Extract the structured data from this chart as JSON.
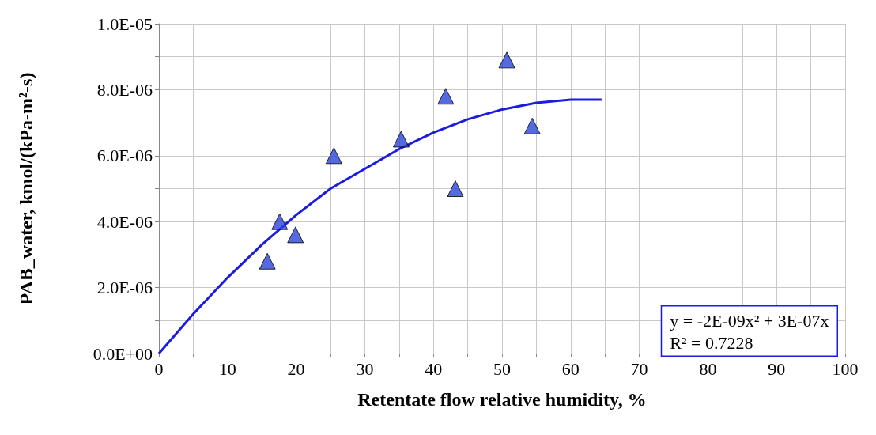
{
  "chart_data": {
    "type": "scatter",
    "xlabel": "Retentate flow relative humidity, %",
    "ylabel": "PAB_water, kmol/(kPa-m²-s)",
    "xlim": [
      0,
      100
    ],
    "xticks": [
      0,
      {
        "value": 5,
        "label": null
      },
      10,
      {
        "value": 15,
        "label": null
      },
      20,
      {
        "value": 25,
        "label": null
      },
      30,
      {
        "value": 35,
        "label": null
      },
      40,
      {
        "value": 45,
        "label": null
      },
      50,
      {
        "value": 55,
        "label": null
      },
      60,
      {
        "value": 65,
        "label": null
      },
      70,
      {
        "value": 75,
        "label": null
      },
      80,
      {
        "value": 85,
        "label": null
      },
      90,
      {
        "value": 95,
        "label": null
      },
      100
    ],
    "ylim": [
      0,
      1e-05
    ],
    "yticks": [
      {
        "value": 0,
        "label": "0.0E+00"
      },
      {
        "value": 1e-06,
        "label": null
      },
      {
        "value": 2e-06,
        "label": "2.0E-06"
      },
      {
        "value": 3e-06,
        "label": null
      },
      {
        "value": 4e-06,
        "label": "4.0E-06"
      },
      {
        "value": 5e-06,
        "label": null
      },
      {
        "value": 6e-06,
        "label": "6.0E-06"
      },
      {
        "value": 7e-06,
        "label": null
      },
      {
        "value": 8e-06,
        "label": "8.0E-06"
      },
      {
        "value": 9e-06,
        "label": null
      },
      {
        "value": 1e-05,
        "label": "1.0E-05"
      }
    ],
    "grid": true,
    "marker": "triangle",
    "series": [
      {
        "type": "scatter",
        "color": "#2a45d8",
        "x": [
          15.8,
          17.6,
          19.9,
          25.5,
          35.3,
          41.8,
          43.2,
          50.7,
          54.4
        ],
        "values": [
          2.8e-06,
          4e-06,
          3.6e-06,
          6e-06,
          6.5e-06,
          7.8e-06,
          5e-06,
          8.9e-06,
          6.9e-06
        ]
      },
      {
        "type": "line",
        "color": "#1c1ce0",
        "marker": "none",
        "x": [
          0,
          5,
          10,
          15,
          20,
          25,
          30,
          35,
          40,
          45,
          50,
          55,
          60,
          64.5
        ],
        "values": [
          0,
          1.2e-06,
          2.3e-06,
          3.3e-06,
          4.2e-06,
          5e-06,
          5.6e-06,
          6.2e-06,
          6.7e-06,
          7.1e-06,
          7.4e-06,
          7.6e-06,
          7.7e-06,
          7.7e-06
        ]
      }
    ],
    "annotations": [
      "y = -2E-09x² + 3E-07x",
      "R² = 0.7228"
    ]
  }
}
